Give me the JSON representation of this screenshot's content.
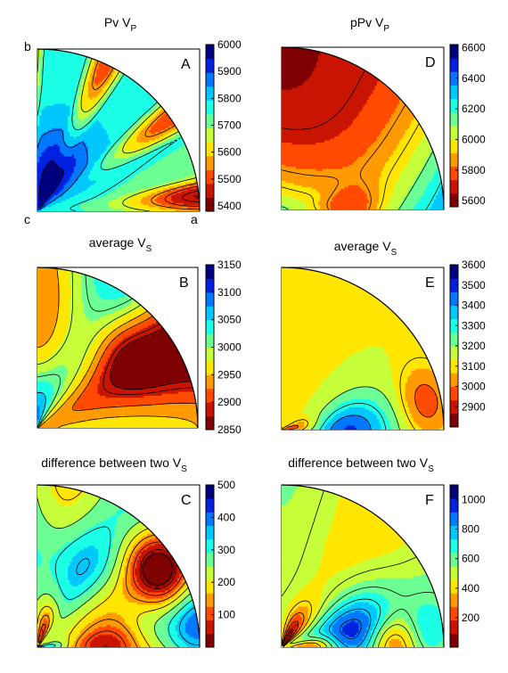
{
  "corner_labels": {
    "b": "b",
    "c": "c",
    "a": "a"
  },
  "colormap": [
    "#7f0000",
    "#c81400",
    "#ff4a00",
    "#ff9a00",
    "#ffe600",
    "#c6ff3a",
    "#6cff94",
    "#1affe6",
    "#00c8ff",
    "#0078ff",
    "#0022e0",
    "#00007f"
  ],
  "chart_data": [
    {
      "id": "A",
      "type": "heatmap",
      "label": "A",
      "title": "Pv V",
      "title_sub": "P",
      "colorbar": {
        "min": 5380,
        "max": 6000,
        "ticks": [
          5400,
          5500,
          5600,
          5700,
          5800,
          5900,
          6000
        ]
      },
      "levels": [
        5450,
        5500,
        5550,
        5650,
        5750,
        5850,
        5950
      ],
      "model": {
        "kind": "A",
        "base": 5760,
        "bump_amp": 240,
        "bump_r": 0.15,
        "bump_t": 0.75,
        "bump_sig": 0.27,
        "wave_amp": 260,
        "wave_k": 12,
        "wave_phase": -1.05,
        "wave_r0": 0.38,
        "wave_sig": 0.3
      }
    },
    {
      "id": "B",
      "type": "heatmap",
      "label": "B",
      "title": "average V",
      "title_sub": "S",
      "colorbar": {
        "min": 2850,
        "max": 3150,
        "ticks": [
          2850,
          2900,
          2950,
          3000,
          3050,
          3100,
          3150
        ]
      },
      "levels": [
        2875,
        2890,
        2925,
        2950,
        2980,
        3010,
        3050,
        3100
      ],
      "model": {
        "kind": "B",
        "base": 2942,
        "amp1": 70,
        "k1": 3,
        "amp2": 62,
        "bump_amp": 150,
        "bump_r": 0.06,
        "bump_t": 0.98,
        "bump_sig": 0.24,
        "spot_amp": -55,
        "spot_r": 0.72,
        "spot_t": 0.45,
        "spot_sig": 0.15
      }
    },
    {
      "id": "C",
      "type": "heatmap",
      "label": "C",
      "title": "difference between two V",
      "title_sub": "S",
      "colorbar": {
        "min": 0,
        "max": 500,
        "ticks": [
          100,
          200,
          300,
          400,
          500
        ]
      },
      "levels": [
        25,
        50,
        100,
        150,
        200,
        250,
        300,
        350
      ],
      "model": {
        "kind": "C",
        "base": 240,
        "b1_amp": 100,
        "b1_r": 0.55,
        "b1_t": 0.78,
        "b1_sig": 0.2,
        "v1_amp": -220,
        "v1_r": 0.88,
        "v1_t": 0.35,
        "v1_sig": 0.13,
        "v2_amp": -200,
        "v2_r": 0.42,
        "v2_t": 0.05,
        "v2_sig": 0.16,
        "v3_amp": -180,
        "v3_r": 0.07,
        "v3_t": 0.8,
        "v3_sig": 0.13,
        "b2_amp": 150,
        "b2_r": 0.02,
        "b2_t": 0.05,
        "b2_sig": 0.09,
        "b3_amp": 130,
        "b3_r": 0.98,
        "b3_t": 0.08,
        "b3_sig": 0.12
      }
    },
    {
      "id": "D",
      "type": "heatmap",
      "label": "D",
      "title": "pPv V",
      "title_sub": "P",
      "colorbar": {
        "min": 5560,
        "max": 6620,
        "ticks": [
          5600,
          5800,
          6000,
          6200,
          6400,
          6600
        ]
      },
      "levels": [
        5700,
        5850,
        5950,
        6100,
        6250,
        6450
      ],
      "model": {
        "kind": "D",
        "base": 5640,
        "amp1": 720,
        "amp2": 540,
        "dip_amp": -280,
        "dip_r": 0.42,
        "dip_t": 0.0,
        "dip_sig": 0.14
      }
    },
    {
      "id": "E",
      "type": "heatmap",
      "label": "E",
      "title": "average V",
      "title_sub": "S",
      "colorbar": {
        "min": 2800,
        "max": 3600,
        "ticks": [
          2900,
          3000,
          3100,
          3200,
          3300,
          3400,
          3500,
          3600
        ]
      },
      "levels": [
        2900,
        3000,
        3100,
        3200,
        3300,
        3400
      ],
      "model": {
        "kind": "E",
        "base": 3150,
        "bump_amp": 330,
        "bump_r": 0.41,
        "bump_t": 0.0,
        "bump_sig": 0.19,
        "dip1_amp": -260,
        "dip1_r": 0.03,
        "dip1_t": 0.1,
        "dip1_sig": 0.14,
        "dip2_amp": -190,
        "dip2_r": 0.9,
        "dip2_t": 0.12,
        "dip2_sig": 0.11,
        "top_amp": -40
      }
    },
    {
      "id": "F",
      "type": "heatmap",
      "label": "F",
      "title": "difference between two V",
      "title_sub": "S",
      "colorbar": {
        "min": 0,
        "max": 1100,
        "ticks": [
          200,
          400,
          600,
          800,
          1000
        ]
      },
      "levels": [
        100,
        200,
        300,
        400,
        500,
        600,
        700,
        800,
        900
      ],
      "model": {
        "kind": "F",
        "base": 480,
        "bump_amp": 480,
        "bump_r": 0.44,
        "bump_t": 0.12,
        "bump_sig": 0.2,
        "dip1_amp": -470,
        "dip1_r": 0.03,
        "dip1_t": 0.65,
        "dip1_sig": 0.15,
        "dip2_amp": -360,
        "dip2_r": 0.2,
        "dip2_t": 0.03,
        "dip2_sig": 0.11,
        "dip3_amp": -360,
        "dip3_r": 0.67,
        "dip3_t": 0.03,
        "dip3_sig": 0.11,
        "bump2_amp": 180,
        "bump2_r": 0.92,
        "bump2_t": 0.05,
        "bump2_sig": 0.1
      }
    }
  ]
}
